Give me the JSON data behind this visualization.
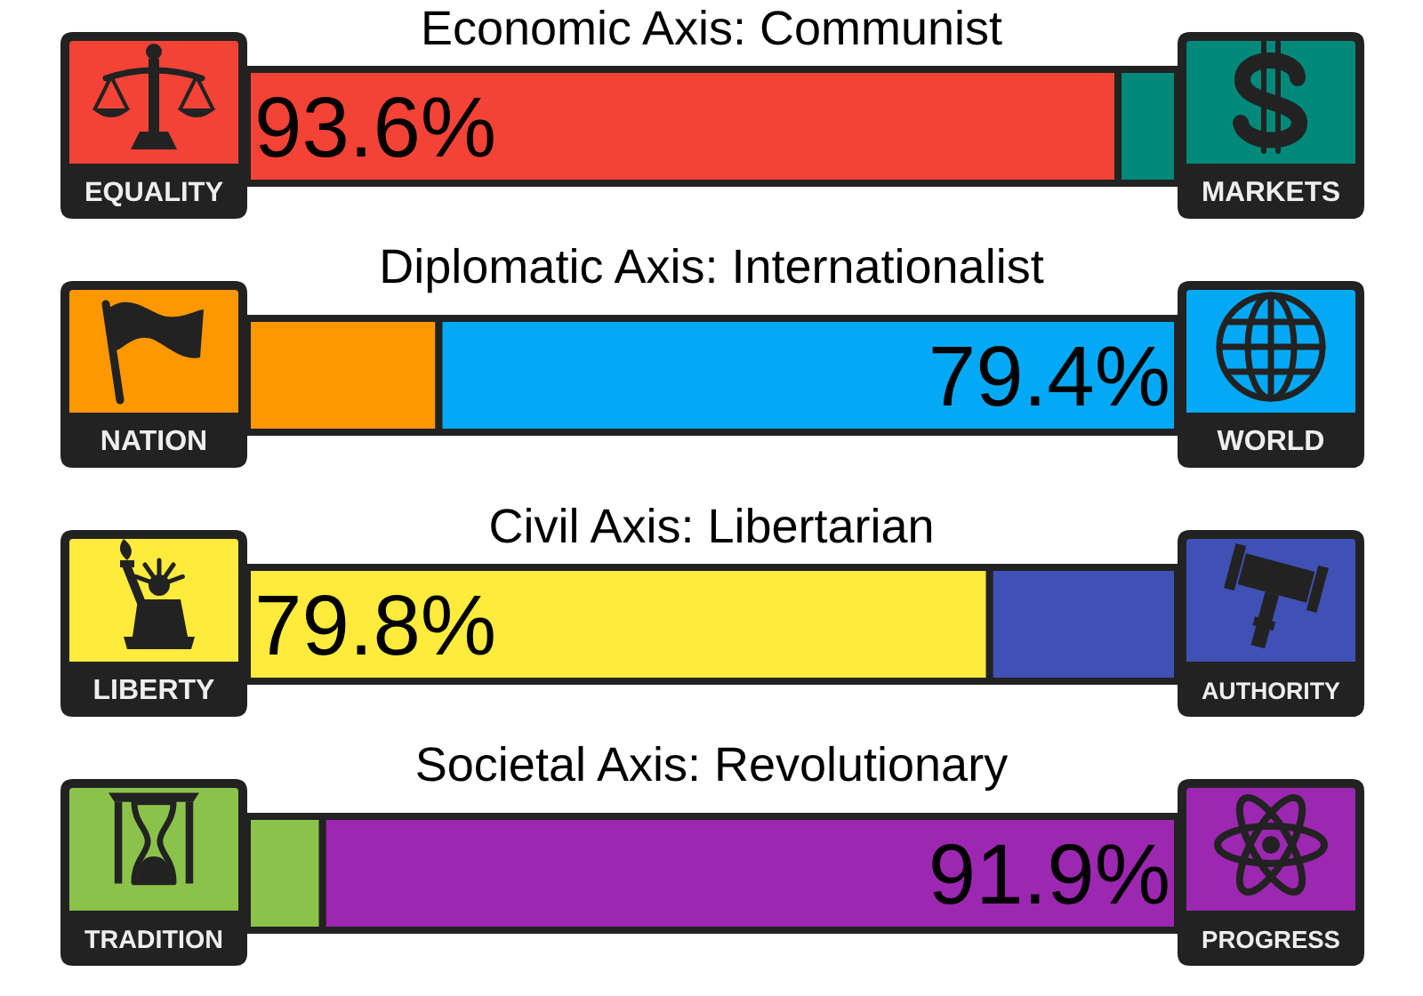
{
  "chart_data": [
    {
      "type": "bar",
      "orientation": "horizontal",
      "stacked": true,
      "title": "Economic Axis: Communist",
      "categories": [
        null
      ],
      "xlim": [
        0,
        100
      ],
      "tick_labels": false,
      "series": [
        {
          "name": "EQUALITY",
          "color": "#f44336",
          "values": [
            93.6
          ],
          "value_labels": [
            "93.6%"
          ]
        },
        {
          "name": "MARKETS",
          "color": "#00897b",
          "values": [
            6.4
          ],
          "value_labels": [
            null
          ]
        }
      ]
    },
    {
      "type": "bar",
      "orientation": "horizontal",
      "stacked": true,
      "title": "Diplomatic Axis: Internationalist",
      "categories": [
        null
      ],
      "xlim": [
        0,
        100
      ],
      "tick_labels": false,
      "series": [
        {
          "name": "NATION",
          "color": "#ff9800",
          "values": [
            20.6
          ],
          "value_labels": [
            null
          ]
        },
        {
          "name": "WORLD",
          "color": "#03a9f4",
          "values": [
            79.4
          ],
          "value_labels": [
            "79.4%"
          ]
        }
      ]
    },
    {
      "type": "bar",
      "orientation": "horizontal",
      "stacked": true,
      "title": "Civil Axis: Libertarian",
      "categories": [
        null
      ],
      "xlim": [
        0,
        100
      ],
      "tick_labels": false,
      "series": [
        {
          "name": "LIBERTY",
          "color": "#ffeb3b",
          "values": [
            79.8
          ],
          "value_labels": [
            "79.8%"
          ]
        },
        {
          "name": "AUTHORITY",
          "color": "#3f51b5",
          "values": [
            20.2
          ],
          "value_labels": [
            null
          ]
        }
      ]
    },
    {
      "type": "bar",
      "orientation": "horizontal",
      "stacked": true,
      "title": "Societal Axis: Revolutionary",
      "categories": [
        null
      ],
      "xlim": [
        0,
        100
      ],
      "tick_labels": false,
      "series": [
        {
          "name": "TRADITION",
          "color": "#8bc34a",
          "values": [
            8.1
          ],
          "value_labels": [
            null
          ]
        },
        {
          "name": "PROGRESS",
          "color": "#9c27b0",
          "values": [
            91.9
          ],
          "value_labels": [
            "91.9%"
          ]
        }
      ]
    }
  ]
}
